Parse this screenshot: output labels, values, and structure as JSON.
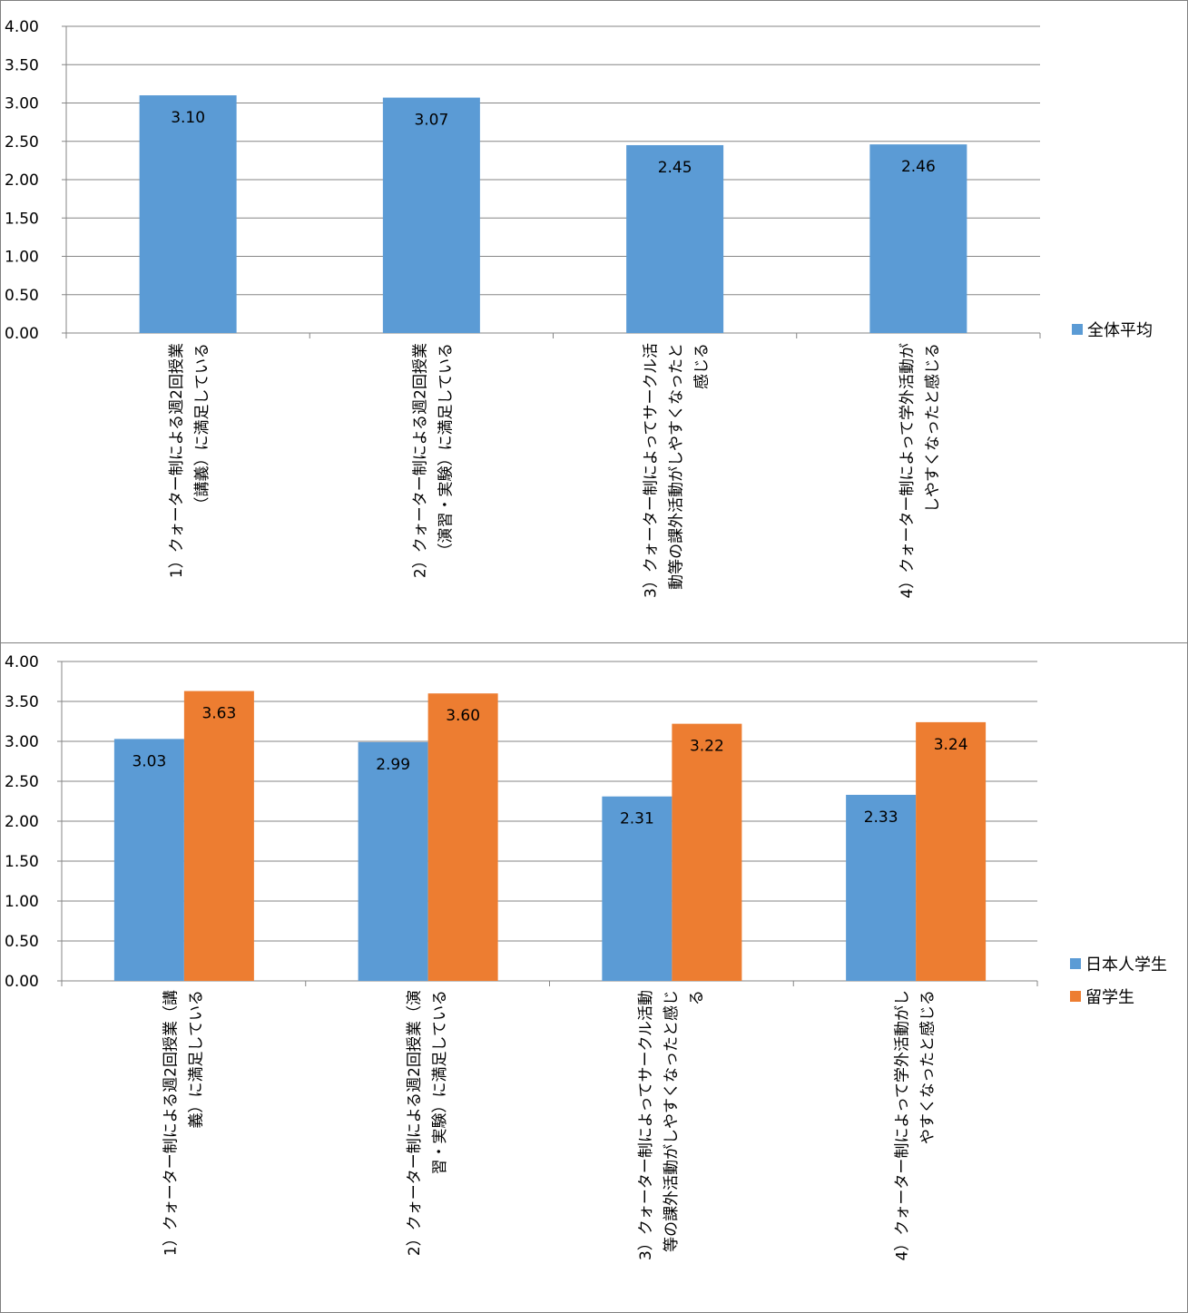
{
  "chart_data": [
    {
      "type": "bar",
      "categories": [
        "1)クォーター制による週2回授業（講義）に満足している",
        "2)クォーター制による週2回授業（演習・実験）に満足している",
        "3)クォーター制によってサークル活動等の課外活動がしやすくなったと感じる",
        "4)クォーター制によって学外活動がしやすくなったと感じる"
      ],
      "category_label_lines": [
        [
          "1）クォーター制による週2回授業",
          "（講義）に満足している"
        ],
        [
          "2）クォーター制による週2回授業",
          "（演習・実験）に満足している"
        ],
        [
          "3）クォーター制によってサークル活",
          "動等の課外活動がしやすくなったと",
          "感じる"
        ],
        [
          "4）クォーター制によって学外活動が",
          "しやすくなったと感じる"
        ]
      ],
      "series": [
        {
          "name": "全体平均",
          "values": [
            3.1,
            3.07,
            2.45,
            2.46
          ],
          "labels": [
            "3.10",
            "3.07",
            "2.45",
            "2.46"
          ],
          "color": "#5b9bd5"
        }
      ],
      "ylim": [
        0,
        4
      ],
      "yticks": [
        "0.00",
        "0.50",
        "1.00",
        "1.50",
        "2.00",
        "2.50",
        "3.00",
        "3.50",
        "4.00"
      ],
      "grid": true,
      "legend_position": "right"
    },
    {
      "type": "bar",
      "categories": [
        "1)クォーター制による週2回授業（講義）に満足している",
        "2)クォーター制による週2回授業（演習・実験）に満足している",
        "3)クォーター制によってサークル活動等の課外活動がしやすくなったと感じる",
        "4)クォーター制によって学外活動がしやすくなったと感じる"
      ],
      "category_label_lines": [
        [
          "1）クォーター制による週2回授業（講",
          "義）に満足している"
        ],
        [
          "2）クォーター制による週2回授業（演",
          "習・実験）に満足している"
        ],
        [
          "3）クォーター制によってサークル活動",
          "等の課外活動がしやすくなったと感じ",
          "る"
        ],
        [
          "4）クォーター制によって学外活動がし",
          "やすくなったと感じる"
        ]
      ],
      "series": [
        {
          "name": "日本人学生",
          "values": [
            3.03,
            2.99,
            2.31,
            2.33
          ],
          "labels": [
            "3.03",
            "2.99",
            "2.31",
            "2.33"
          ],
          "color": "#5b9bd5"
        },
        {
          "name": "留学生",
          "values": [
            3.63,
            3.6,
            3.22,
            3.24
          ],
          "labels": [
            "3.63",
            "3.60",
            "3.22",
            "3.24"
          ],
          "color": "#ed7d31"
        }
      ],
      "ylim": [
        0,
        4
      ],
      "yticks": [
        "0.00",
        "0.50",
        "1.00",
        "1.50",
        "2.00",
        "2.50",
        "3.00",
        "3.50",
        "4.00"
      ],
      "grid": true,
      "legend_position": "right"
    }
  ]
}
